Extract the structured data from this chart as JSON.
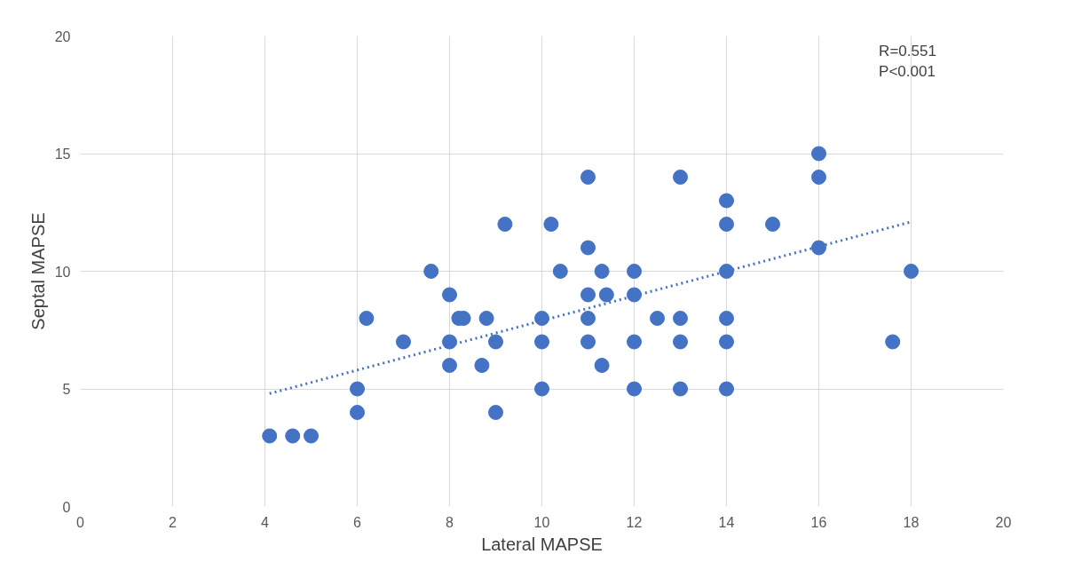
{
  "chart_data": {
    "type": "scatter",
    "xlabel": "Lateral MAPSE",
    "ylabel": "Septal MAPSE",
    "annotations": [
      "R=0.551\nP<0.001"
    ],
    "xlim": [
      0,
      20
    ],
    "ylim": [
      0,
      20
    ],
    "xticks": [
      0,
      2,
      4,
      6,
      8,
      10,
      12,
      14,
      16,
      18,
      20
    ],
    "yticks": [
      0,
      5,
      10,
      15,
      20
    ],
    "grid": true,
    "series": [
      {
        "marker": "circle",
        "color": "#4472c4",
        "x": [
          4.1,
          4.6,
          5,
          6,
          6,
          6.2,
          7,
          7.6,
          8,
          8,
          8,
          8.2,
          8.3,
          8.7,
          8.8,
          9,
          9,
          9.2,
          10,
          10,
          10,
          10.2,
          10.4,
          11,
          11,
          11,
          11,
          11,
          11.3,
          11.3,
          11.4,
          12,
          12,
          12,
          12,
          12.5,
          13,
          13,
          13,
          13,
          14,
          14,
          14,
          14,
          14,
          14,
          15,
          16,
          16,
          16,
          17.6,
          18
        ],
        "values": [
          3,
          3,
          3,
          5,
          4,
          8,
          7,
          10,
          9,
          7,
          6,
          8,
          8,
          6,
          8,
          7,
          4,
          12,
          8,
          7,
          5,
          12,
          10,
          14,
          11,
          9,
          8,
          7,
          10,
          6,
          9,
          10,
          9,
          7,
          5,
          8,
          14,
          8,
          7,
          5,
          13,
          12,
          10,
          8,
          7,
          5,
          12,
          15,
          14,
          11,
          7,
          10
        ]
      },
      {
        "type": "line",
        "color": "#4472c4",
        "line_style": "dotted",
        "x": [
          4.1,
          18
        ],
        "values": [
          4.8,
          12.1
        ]
      }
    ]
  }
}
